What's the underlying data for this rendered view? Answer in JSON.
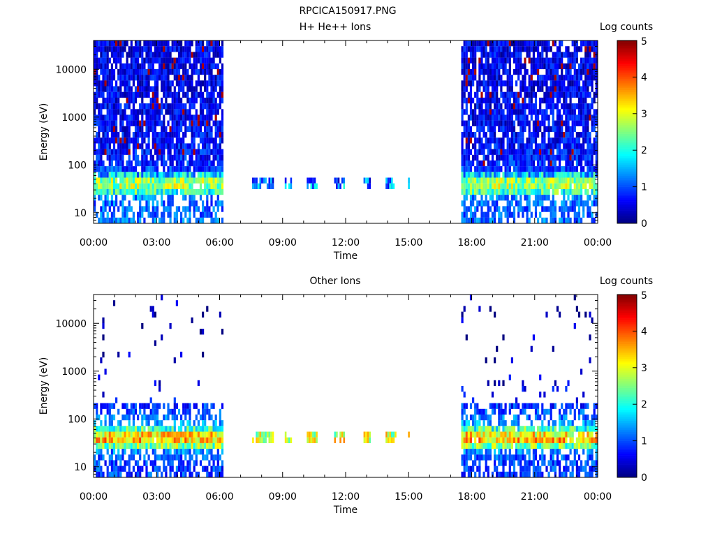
{
  "figure_title": "RPCICA150917.PNG",
  "chart_data": [
    {
      "type": "heatmap",
      "title": "H+ He++ Ions",
      "xlabel": "Time",
      "ylabel": "Energy (eV)",
      "yscale": "log",
      "ylim": [
        6,
        40000
      ],
      "xlim_hours": [
        0,
        24
      ],
      "x_tick_labels": [
        "00:00",
        "03:00",
        "06:00",
        "09:00",
        "12:00",
        "15:00",
        "18:00",
        "21:00",
        "00:00"
      ],
      "x_tick_hours": [
        0,
        3,
        6,
        9,
        12,
        15,
        18,
        21,
        24
      ],
      "y_tick_labels": [
        "10",
        "100",
        "1000",
        "10000"
      ],
      "y_tick_values": [
        10,
        100,
        1000,
        10000
      ],
      "grid": false,
      "colorbar": {
        "label": "Log counts",
        "range": [
          0,
          5
        ],
        "tick_labels": [
          "0",
          "1",
          "2",
          "3",
          "4",
          "5"
        ],
        "colormap": "jet"
      },
      "coverage": {
        "full_intervals_hours": [
          [
            0.0,
            6.1
          ],
          [
            17.5,
            24.0
          ]
        ],
        "burst_intervals_hours": [
          [
            7.55,
            8.55
          ],
          [
            9.1,
            9.45
          ],
          [
            10.15,
            10.6
          ],
          [
            11.45,
            11.95
          ],
          [
            12.85,
            13.2
          ],
          [
            13.9,
            14.35
          ],
          [
            14.97,
            15.05
          ]
        ]
      },
      "profile": {
        "energy_eV": [
          6,
          10,
          15,
          22,
          30,
          40,
          55,
          70,
          100,
          200,
          500,
          1000,
          3000,
          10000,
          40000
        ],
        "typical_log_counts": [
          1.2,
          1.1,
          1.1,
          1.3,
          2.5,
          2.7,
          2.3,
          1.0,
          0.8,
          0.7,
          0.6,
          0.6,
          0.55,
          0.55,
          0.5
        ],
        "burst_log_counts": [
          null,
          null,
          null,
          null,
          1.5,
          1.2,
          1.0,
          null,
          null,
          null,
          null,
          null,
          null,
          null,
          null
        ]
      }
    },
    {
      "type": "heatmap",
      "title": "Other Ions",
      "xlabel": "Time",
      "ylabel": "Energy (eV)",
      "yscale": "log",
      "ylim": [
        6,
        40000
      ],
      "xlim_hours": [
        0,
        24
      ],
      "x_tick_labels": [
        "00:00",
        "03:00",
        "06:00",
        "09:00",
        "12:00",
        "15:00",
        "18:00",
        "21:00",
        "00:00"
      ],
      "x_tick_hours": [
        0,
        3,
        6,
        9,
        12,
        15,
        18,
        21,
        24
      ],
      "y_tick_labels": [
        "10",
        "100",
        "1000",
        "10000"
      ],
      "y_tick_values": [
        10,
        100,
        1000,
        10000
      ],
      "grid": false,
      "colorbar": {
        "label": "Log counts",
        "range": [
          0,
          5
        ],
        "tick_labels": [
          "0",
          "1",
          "2",
          "3",
          "4",
          "5"
        ],
        "colormap": "jet"
      },
      "coverage": {
        "full_intervals_hours": [
          [
            0.0,
            6.1
          ],
          [
            17.5,
            24.0
          ]
        ],
        "burst_intervals_hours": [
          [
            7.55,
            8.55
          ],
          [
            9.1,
            9.45
          ],
          [
            10.15,
            10.6
          ],
          [
            11.45,
            11.95
          ],
          [
            12.85,
            13.2
          ],
          [
            13.9,
            14.35
          ],
          [
            14.97,
            15.05
          ]
        ]
      },
      "profile": {
        "energy_eV": [
          6,
          10,
          15,
          22,
          30,
          40,
          55,
          70,
          100,
          200,
          500,
          1000,
          3000,
          10000,
          40000
        ],
        "typical_log_counts": [
          0.9,
          0.9,
          1.0,
          1.3,
          3.0,
          3.6,
          2.8,
          1.6,
          1.2,
          0.8,
          0.4,
          0.3,
          0.2,
          0.2,
          0.2
        ],
        "burst_log_counts": [
          null,
          null,
          null,
          null,
          2.5,
          3.2,
          2.6,
          null,
          null,
          null,
          null,
          null,
          null,
          null,
          null
        ]
      }
    }
  ]
}
